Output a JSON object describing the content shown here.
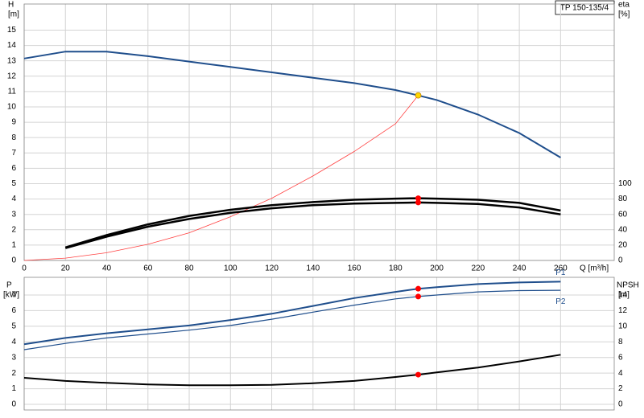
{
  "chart_data": [
    {
      "type": "line",
      "title": "TP 150-135/4",
      "ylabel": "H",
      "yunit": "[m]",
      "y2label": "eta",
      "y2unit": "[%]",
      "xlabel": "Q [m³/h]",
      "xlim": [
        0,
        286
      ],
      "xticks": [
        0,
        20,
        40,
        60,
        80,
        100,
        120,
        140,
        160,
        180,
        200,
        220,
        240,
        260
      ],
      "ylim": [
        0,
        16.7
      ],
      "yticks": [
        0,
        1,
        2,
        3,
        4,
        5,
        6,
        7,
        8,
        9,
        10,
        11,
        12,
        13,
        14,
        15
      ],
      "y2lim": [
        0,
        334
      ],
      "y2ticks": [
        0,
        20,
        40,
        60,
        80,
        100
      ],
      "grid": true,
      "series": [
        {
          "color": "#1f4e8c",
          "line_width": 2,
          "axis": "y",
          "x": [
            0,
            20,
            40,
            60,
            80,
            100,
            120,
            140,
            160,
            180,
            191,
            200,
            220,
            240,
            260
          ],
          "values": [
            13.15,
            13.6,
            13.6,
            13.3,
            12.95,
            12.6,
            12.25,
            11.9,
            11.55,
            11.1,
            10.75,
            10.45,
            9.5,
            8.3,
            6.7
          ]
        },
        {
          "color": "#ff4040",
          "line_width": 0.8,
          "axis": "y",
          "x": [
            0,
            20,
            40,
            60,
            80,
            100,
            120,
            140,
            160,
            180,
            191
          ],
          "values": [
            0,
            0.15,
            0.5,
            1.05,
            1.8,
            2.85,
            4.05,
            5.5,
            7.1,
            8.9,
            10.75
          ]
        },
        {
          "color": "#000000",
          "line_width": 2.5,
          "axis": "y2",
          "x": [
            20,
            40,
            60,
            80,
            100,
            120,
            140,
            160,
            180,
            191,
            200,
            220,
            240,
            260
          ],
          "values": [
            17,
            33,
            47,
            58,
            66,
            72,
            76,
            79,
            80.5,
            81,
            80.5,
            79,
            75,
            65
          ]
        },
        {
          "color": "#000000",
          "line_width": 2.5,
          "axis": "y2",
          "x": [
            20,
            40,
            60,
            80,
            100,
            120,
            140,
            160,
            180,
            191,
            200,
            220,
            240,
            260
          ],
          "values": [
            16,
            31,
            44,
            54,
            62,
            68,
            72,
            74,
            75,
            75.5,
            75,
            73.5,
            69,
            60
          ]
        }
      ],
      "markers": [
        {
          "x": 191,
          "y": 10.75,
          "color": "#ffd700",
          "axis": "y"
        },
        {
          "x": 191,
          "y": 81,
          "color": "#ff0000",
          "axis": "y2"
        },
        {
          "x": 191,
          "y": 75.5,
          "color": "#ff0000",
          "axis": "y2"
        }
      ]
    },
    {
      "type": "line",
      "ylabel": "P",
      "yunit": "[kW]",
      "y2label": "NPSH",
      "y2unit": "[m]",
      "xlim": [
        0,
        286
      ],
      "ylim": [
        -0.36,
        8.13
      ],
      "yticks": [
        0,
        1,
        2,
        3,
        4,
        5,
        6,
        7
      ],
      "y2lim": [
        -0.72,
        16.26
      ],
      "y2ticks": [
        0,
        2,
        4,
        6,
        8,
        10,
        12,
        14
      ],
      "grid": true,
      "series": [
        {
          "name": "P1",
          "color": "#1f4e8c",
          "line_width": 2,
          "axis": "y",
          "x": [
            0,
            20,
            40,
            60,
            80,
            100,
            120,
            140,
            160,
            180,
            191,
            200,
            220,
            240,
            260
          ],
          "values": [
            3.85,
            4.25,
            4.55,
            4.8,
            5.05,
            5.4,
            5.8,
            6.3,
            6.8,
            7.2,
            7.4,
            7.5,
            7.7,
            7.8,
            7.85
          ]
        },
        {
          "name": "P2",
          "color": "#1f4e8c",
          "line_width": 1.2,
          "axis": "y",
          "x": [
            0,
            20,
            40,
            60,
            80,
            100,
            120,
            140,
            160,
            180,
            191,
            200,
            220,
            240,
            260
          ],
          "values": [
            3.5,
            3.9,
            4.25,
            4.5,
            4.75,
            5.05,
            5.45,
            5.9,
            6.35,
            6.75,
            6.9,
            7.0,
            7.2,
            7.28,
            7.3
          ]
        },
        {
          "color": "#000000",
          "line_width": 2,
          "axis": "y2",
          "x": [
            0,
            20,
            40,
            60,
            80,
            100,
            120,
            140,
            160,
            180,
            191,
            200,
            220,
            240,
            260
          ],
          "values": [
            3.4,
            3.0,
            2.75,
            2.55,
            2.45,
            2.45,
            2.5,
            2.7,
            3.0,
            3.5,
            3.8,
            4.1,
            4.7,
            5.5,
            6.35
          ]
        }
      ],
      "markers": [
        {
          "x": 191,
          "y": 7.4,
          "color": "#ff0000",
          "axis": "y"
        },
        {
          "x": 191,
          "y": 6.9,
          "color": "#ff0000",
          "axis": "y"
        },
        {
          "x": 191,
          "y": 3.8,
          "color": "#ff0000",
          "axis": "y2"
        }
      ]
    }
  ]
}
